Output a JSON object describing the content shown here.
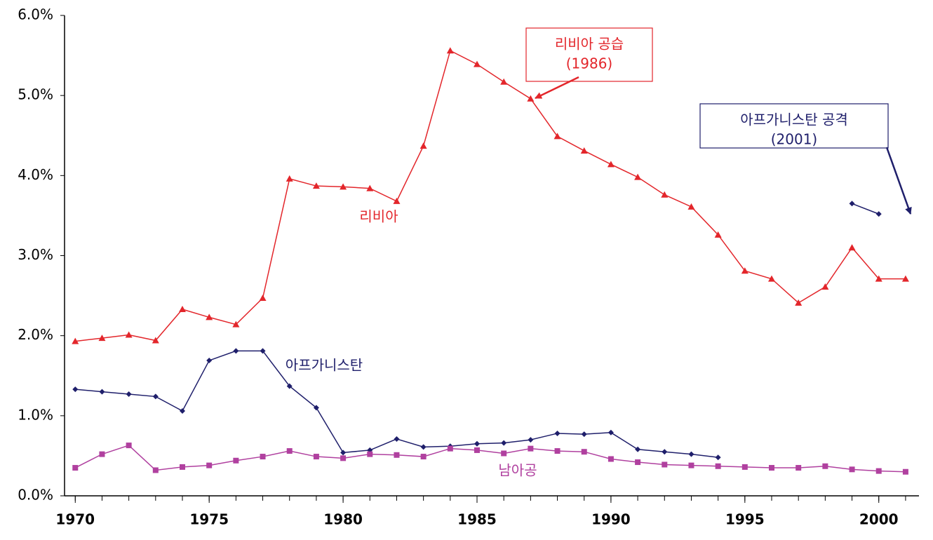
{
  "chart_data": {
    "type": "line",
    "x": [
      1970,
      1971,
      1972,
      1973,
      1974,
      1975,
      1976,
      1977,
      1978,
      1979,
      1980,
      1981,
      1982,
      1983,
      1984,
      1985,
      1986,
      1987,
      1988,
      1989,
      1990,
      1991,
      1992,
      1993,
      1994,
      1995,
      1996,
      1997,
      1998,
      1999,
      2000,
      2001
    ],
    "series": [
      {
        "name": "리비아",
        "color": "#e3262b",
        "marker": "triangle",
        "values": [
          1.93,
          1.97,
          2.01,
          1.94,
          2.33,
          2.23,
          2.14,
          2.47,
          3.96,
          3.87,
          3.86,
          3.84,
          3.68,
          4.37,
          5.56,
          5.39,
          5.17,
          4.96,
          4.49,
          4.31,
          4.14,
          3.98,
          3.76,
          3.61,
          3.26,
          2.81,
          2.71,
          2.41,
          2.61,
          3.1,
          2.71,
          2.71
        ]
      },
      {
        "name": "아프가니스탄",
        "color": "#1f1f6b",
        "marker": "diamond",
        "values": [
          1.33,
          1.3,
          1.27,
          1.24,
          1.06,
          1.69,
          1.81,
          1.81,
          1.37,
          1.1,
          0.54,
          0.57,
          0.71,
          0.61,
          0.62,
          0.65,
          0.66,
          0.7,
          0.78,
          0.77,
          0.79,
          0.58,
          0.55,
          0.52,
          0.48,
          null,
          null,
          null,
          null,
          3.65,
          3.52,
          null
        ]
      },
      {
        "name": "남아공",
        "color": "#b0409f",
        "marker": "square",
        "values": [
          0.35,
          0.52,
          0.63,
          0.32,
          0.36,
          0.38,
          0.44,
          0.49,
          0.56,
          0.49,
          0.47,
          0.52,
          0.51,
          0.49,
          0.59,
          0.57,
          0.53,
          0.59,
          0.56,
          0.55,
          0.46,
          0.42,
          0.39,
          0.38,
          0.37,
          0.36,
          0.35,
          0.35,
          0.37,
          0.33,
          0.31,
          0.3
        ]
      }
    ],
    "xlim": [
      1969.6,
      2001.5
    ],
    "xticks": [
      1970,
      1975,
      1980,
      1985,
      1990,
      1995,
      2000
    ],
    "ylim": [
      0,
      6
    ],
    "yticks": [
      {
        "value": 0,
        "label": "0.0%"
      },
      {
        "value": 1,
        "label": "1.0%"
      },
      {
        "value": 2,
        "label": "2.0%"
      },
      {
        "value": 3,
        "label": "3.0%"
      },
      {
        "value": 4,
        "label": "4.0%"
      },
      {
        "value": 5,
        "label": "5.0%"
      },
      {
        "value": 6,
        "label": "6.0%"
      }
    ],
    "annotations": [
      {
        "lines": [
          "리비아 공습",
          "(1986)"
        ],
        "color": "#e3262b"
      },
      {
        "lines": [
          "아프가니스탄 공격",
          "(2001)"
        ],
        "color": "#1f1f6b"
      }
    ]
  }
}
